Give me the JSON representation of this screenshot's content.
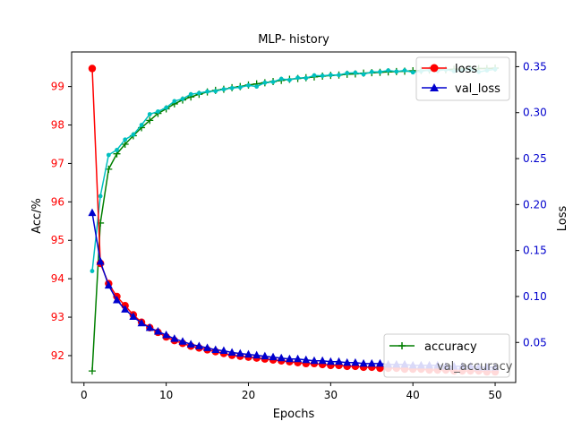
{
  "chart_data": {
    "type": "line",
    "title": "MLP- history",
    "xlabel": "Epochs",
    "ylabel_left": "Acc/%",
    "ylabel_right": "Loss",
    "xlim": [
      -1.5,
      52.5
    ],
    "ylim_left": [
      91.3,
      99.9
    ],
    "ylim_right": [
      0.0064,
      0.366
    ],
    "xticks": [
      0,
      10,
      20,
      30,
      40,
      50
    ],
    "yticks_left": [
      92,
      93,
      94,
      95,
      96,
      97,
      98,
      99
    ],
    "yticks_right": [
      0.05,
      0.1,
      0.15,
      0.2,
      0.25,
      0.3,
      0.35
    ],
    "colors": {
      "left_axis": "#ff0000",
      "right_axis": "#0000cd"
    },
    "legend_right_top": {
      "placement": "top-right",
      "entries": [
        "loss",
        "val_loss"
      ]
    },
    "legend_left_bottom": {
      "placement": "lower-right",
      "entries": [
        "accuracy"
      ],
      "hidden_entry": "val_accuracy"
    },
    "x": [
      1,
      2,
      3,
      4,
      5,
      6,
      7,
      8,
      9,
      10,
      11,
      12,
      13,
      14,
      15,
      16,
      17,
      18,
      19,
      20,
      21,
      22,
      23,
      24,
      25,
      26,
      27,
      28,
      29,
      30,
      31,
      32,
      33,
      34,
      35,
      36,
      37,
      38,
      39,
      40,
      41,
      42,
      43,
      44,
      45,
      46,
      47,
      48,
      49,
      50
    ],
    "series": [
      {
        "name": "loss",
        "axis": "right",
        "color": "#ff0000",
        "marker": "circle",
        "values": [
          0.348,
          0.136,
          0.114,
          0.1,
          0.09,
          0.08,
          0.072,
          0.066,
          0.061,
          0.056,
          0.052,
          0.049,
          0.046,
          0.044,
          0.042,
          0.04,
          0.038,
          0.036,
          0.035,
          0.034,
          0.033,
          0.032,
          0.031,
          0.03,
          0.029,
          0.028,
          0.027,
          0.027,
          0.026,
          0.025,
          0.025,
          0.024,
          0.024,
          0.023,
          0.023,
          0.022,
          0.022,
          0.022,
          0.021,
          0.021,
          0.021,
          0.02,
          0.02,
          0.02,
          0.019,
          0.019,
          0.019,
          0.019,
          0.018,
          0.018
        ]
      },
      {
        "name": "val_loss",
        "axis": "right",
        "color": "#0000cd",
        "marker": "triangle",
        "values": [
          0.191,
          0.138,
          0.112,
          0.096,
          0.086,
          0.078,
          0.071,
          0.066,
          0.062,
          0.058,
          0.054,
          0.051,
          0.048,
          0.046,
          0.044,
          0.042,
          0.041,
          0.039,
          0.038,
          0.037,
          0.036,
          0.035,
          0.034,
          0.033,
          0.032,
          0.032,
          0.031,
          0.03,
          0.03,
          0.029,
          0.029,
          0.028,
          0.028,
          0.027,
          0.027,
          0.027,
          0.026,
          0.026,
          0.026,
          0.025,
          0.025,
          0.025,
          0.025,
          0.024,
          0.024,
          0.024,
          0.024,
          0.023,
          0.023,
          0.023
        ]
      },
      {
        "name": "accuracy",
        "axis": "left",
        "color": "#007f00",
        "marker": "plus",
        "values": [
          91.6,
          95.45,
          96.85,
          97.25,
          97.5,
          97.72,
          97.93,
          98.12,
          98.3,
          98.42,
          98.55,
          98.65,
          98.73,
          98.8,
          98.86,
          98.9,
          98.93,
          98.97,
          99.0,
          99.04,
          99.07,
          99.1,
          99.13,
          99.16,
          99.19,
          99.21,
          99.23,
          99.25,
          99.27,
          99.29,
          99.3,
          99.32,
          99.33,
          99.35,
          99.36,
          99.37,
          99.38,
          99.39,
          99.4,
          99.41,
          99.42,
          99.43,
          99.44,
          99.44,
          99.45,
          99.46,
          99.46,
          99.47,
          99.47,
          99.48
        ]
      },
      {
        "name": "val_accuracy",
        "axis": "left",
        "color": "#00bfbf",
        "marker": "dot",
        "values": [
          94.2,
          96.15,
          97.22,
          97.35,
          97.62,
          97.75,
          98.0,
          98.28,
          98.35,
          98.45,
          98.62,
          98.68,
          98.8,
          98.83,
          98.87,
          98.88,
          98.93,
          98.96,
          98.98,
          99.03,
          99.0,
          99.1,
          99.12,
          99.2,
          99.17,
          99.23,
          99.22,
          99.29,
          99.28,
          99.3,
          99.3,
          99.35,
          99.36,
          99.32,
          99.38,
          99.38,
          99.42,
          99.39,
          99.42,
          99.37,
          99.4,
          99.43,
          99.41,
          99.44,
          99.4,
          99.42,
          99.45,
          99.38,
          99.42,
          99.45
        ]
      }
    ]
  }
}
